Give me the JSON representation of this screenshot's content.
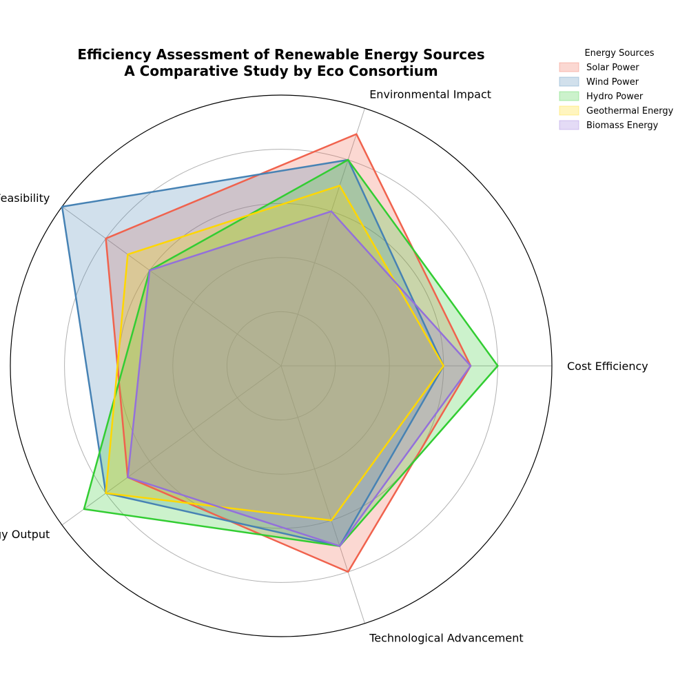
{
  "chart_data": {
    "type": "radar",
    "title": "Efficiency Assessment of Renewable Energy Sources",
    "subtitle": "A Comparative Study by Eco Consortium",
    "categories": [
      "Cost Efficiency",
      "Environmental Impact",
      "Feasibility",
      "Energy Output",
      "Technological Advancement"
    ],
    "rlim": [
      0,
      10
    ],
    "grid": true,
    "legend_title": "Energy Sources",
    "legend_position": "top-right",
    "series": [
      {
        "name": "Solar Power",
        "values": [
          7,
          9,
          8,
          7,
          8
        ],
        "color": "#f0624d"
      },
      {
        "name": "Wind Power",
        "values": [
          6,
          8,
          10,
          8,
          7
        ],
        "color": "#4682b4"
      },
      {
        "name": "Hydro Power",
        "values": [
          8,
          8,
          6,
          9,
          7
        ],
        "color": "#32cd32"
      },
      {
        "name": "Geothermal Energy",
        "values": [
          6,
          7,
          7,
          8,
          6
        ],
        "color": "#ffd700"
      },
      {
        "name": "Biomass Energy",
        "values": [
          7,
          6,
          6,
          7,
          7
        ],
        "color": "#9370db"
      }
    ]
  }
}
